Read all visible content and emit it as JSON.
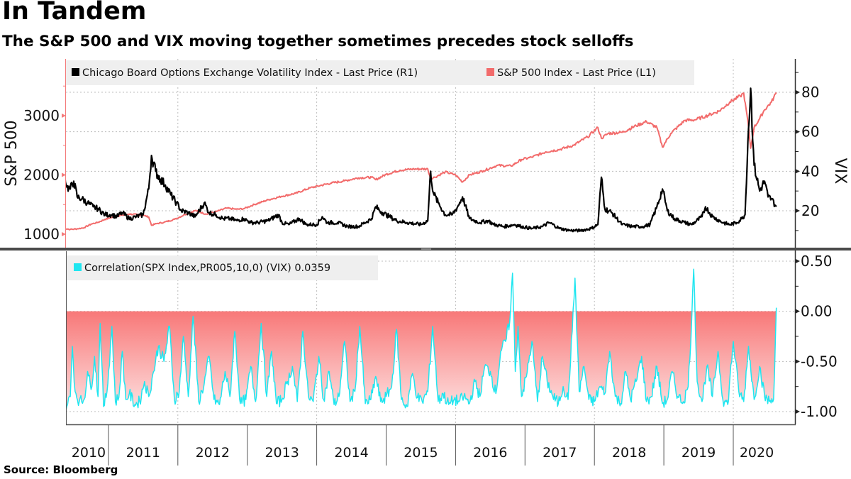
{
  "header": {
    "title": "In Tandem",
    "subtitle": "The S&P 500 and VIX moving together sometimes precedes stock selloffs"
  },
  "footer": {
    "source": "Source: Bloomberg"
  },
  "colors": {
    "vix": "#000000",
    "spx": "#f26b6b",
    "correlation": "#1fe6f0",
    "fill_top": "#f87878",
    "fill_bottom": "#fde0e0",
    "separator": "#4a4a4a",
    "legend_bg": "#efefef",
    "grid": "#bdbdbd"
  },
  "chart_data": [
    {
      "type": "line",
      "panel": "top",
      "title": "",
      "x_range": [
        2010.35,
        2020.62
      ],
      "x_tick_labels": [
        "2010",
        "2011",
        "2012",
        "2013",
        "2014",
        "2015",
        "2016",
        "2017",
        "2018",
        "2019",
        "2020"
      ],
      "left_axis": {
        "label": "S&P 500",
        "ylim": [
          900,
          3750
        ],
        "ticks": [
          1000,
          2000,
          3000
        ],
        "tick_labels": [
          "1000",
          "2000",
          "3000"
        ]
      },
      "right_axis": {
        "label": "VIX",
        "ylim": [
          0,
          95
        ],
        "ticks": [
          20,
          40,
          60,
          80
        ],
        "tick_labels": [
          "20",
          "40",
          "60",
          "80"
        ]
      },
      "legend": {
        "placement": "top-left"
      },
      "grid": true,
      "series": [
        {
          "name": "Chicago Board Options Exchange Volatility Index - Last Price (R1)",
          "legend_label": "Chicago Board Options Exchange Volatility Index - Last Price (R1)",
          "axis": "right",
          "x": [
            2010.35,
            2010.4,
            2010.45,
            2010.5,
            2010.55,
            2010.62,
            2010.7,
            2010.78,
            2010.85,
            2010.95,
            2011.05,
            2011.12,
            2011.2,
            2011.3,
            2011.4,
            2011.5,
            2011.58,
            2011.62,
            2011.68,
            2011.75,
            2011.82,
            2011.9,
            2011.98,
            2012.05,
            2012.15,
            2012.25,
            2012.38,
            2012.45,
            2012.55,
            2012.65,
            2012.75,
            2012.85,
            2012.95,
            2013.05,
            2013.15,
            2013.3,
            2013.45,
            2013.5,
            2013.6,
            2013.75,
            2013.85,
            2014.0,
            2014.08,
            2014.15,
            2014.3,
            2014.45,
            2014.6,
            2014.79,
            2014.85,
            2014.95,
            2015.05,
            2015.15,
            2015.3,
            2015.5,
            2015.6,
            2015.64,
            2015.68,
            2015.75,
            2015.85,
            2015.95,
            2016.03,
            2016.1,
            2016.2,
            2016.35,
            2016.47,
            2016.55,
            2016.7,
            2016.85,
            2016.95,
            2017.1,
            2017.25,
            2017.35,
            2017.5,
            2017.65,
            2017.8,
            2017.95,
            2018.05,
            2018.1,
            2018.15,
            2018.25,
            2018.4,
            2018.55,
            2018.7,
            2018.8,
            2018.9,
            2018.98,
            2019.05,
            2019.15,
            2019.3,
            2019.4,
            2019.55,
            2019.6,
            2019.7,
            2019.85,
            2019.95,
            2020.05,
            2020.12,
            2020.17,
            2020.21,
            2020.25,
            2020.3,
            2020.38,
            2020.45,
            2020.5,
            2020.55,
            2020.62
          ],
          "values": [
            43,
            32,
            31,
            35,
            27,
            26,
            24,
            22,
            21,
            18,
            18,
            17,
            19,
            16,
            17,
            18,
            31,
            48,
            40,
            36,
            33,
            28,
            24,
            20,
            19,
            17,
            24,
            19,
            18,
            16,
            16,
            15,
            16,
            14,
            14,
            15,
            18,
            14,
            13,
            16,
            13,
            13,
            17,
            14,
            14,
            12,
            12,
            16,
            22,
            19,
            17,
            15,
            14,
            13,
            15,
            40,
            29,
            24,
            18,
            18,
            22,
            27,
            16,
            14,
            15,
            13,
            12,
            13,
            12,
            11,
            12,
            14,
            11,
            10,
            10,
            11,
            13,
            37,
            21,
            19,
            13,
            12,
            12,
            13,
            22,
            31,
            20,
            16,
            14,
            13,
            17,
            22,
            17,
            14,
            13,
            14,
            16,
            18,
            55,
            82,
            43,
            30,
            35,
            27,
            26,
            22
          ]
        },
        {
          "name": "S&P 500 Index - Last Price (L1)",
          "legend_label": "S&P 500 Index - Last Price (L1)",
          "axis": "left",
          "x": [
            2010.35,
            2010.45,
            2010.55,
            2010.65,
            2010.75,
            2010.85,
            2010.95,
            2011.1,
            2011.3,
            2011.5,
            2011.58,
            2011.62,
            2011.7,
            2011.8,
            2011.95,
            2012.1,
            2012.25,
            2012.4,
            2012.55,
            2012.7,
            2012.85,
            2012.95,
            2013.1,
            2013.3,
            2013.5,
            2013.7,
            2013.9,
            2014.05,
            2014.2,
            2014.4,
            2014.6,
            2014.79,
            2014.85,
            2015.0,
            2015.2,
            2015.4,
            2015.6,
            2015.64,
            2015.7,
            2015.85,
            2016.0,
            2016.1,
            2016.2,
            2016.4,
            2016.6,
            2016.8,
            2016.95,
            2017.1,
            2017.3,
            2017.5,
            2017.7,
            2017.9,
            2018.05,
            2018.1,
            2018.2,
            2018.4,
            2018.6,
            2018.75,
            2018.9,
            2018.98,
            2019.1,
            2019.3,
            2019.45,
            2019.6,
            2019.8,
            2019.95,
            2020.1,
            2020.15,
            2020.21,
            2020.25,
            2020.3,
            2020.38,
            2020.45,
            2020.55,
            2020.62
          ],
          "values": [
            1100,
            1080,
            1090,
            1110,
            1170,
            1200,
            1250,
            1300,
            1340,
            1320,
            1290,
            1150,
            1180,
            1200,
            1250,
            1330,
            1400,
            1340,
            1380,
            1440,
            1420,
            1430,
            1500,
            1580,
            1640,
            1690,
            1780,
            1820,
            1860,
            1900,
            1950,
            1960,
            1920,
            2010,
            2080,
            2100,
            2100,
            1940,
            1960,
            2050,
            2000,
            1880,
            2000,
            2070,
            2160,
            2150,
            2260,
            2300,
            2390,
            2430,
            2500,
            2640,
            2800,
            2620,
            2700,
            2720,
            2830,
            2900,
            2800,
            2470,
            2700,
            2920,
            2930,
            2990,
            3080,
            3230,
            3330,
            3380,
            2900,
            2450,
            2800,
            2950,
            3100,
            3230,
            3390
          ]
        }
      ]
    },
    {
      "type": "area",
      "panel": "bottom",
      "title": "",
      "x_range": [
        2010.35,
        2020.62
      ],
      "right_axis": {
        "label": "",
        "ylim": [
          -1.12,
          0.57
        ],
        "ticks": [
          0.5,
          0,
          -0.5,
          -1.0
        ],
        "tick_labels": [
          "0.50",
          "0.00",
          "-0.50",
          "-1.00"
        ]
      },
      "legend": {
        "placement": "top-left"
      },
      "grid": true,
      "series": [
        {
          "name": "Correlation(SPX Index,PR005,10,0) (VIX)",
          "legend_label": "Correlation(SPX Index,PR005,10,0) (VIX) 0.0359",
          "last_value": 0.0359,
          "x": [
            2010.35,
            2010.4,
            2010.45,
            2010.48,
            2010.52,
            2010.58,
            2010.65,
            2010.7,
            2010.75,
            2010.8,
            2010.85,
            2010.88,
            2010.93,
            2010.98,
            2011.05,
            2011.1,
            2011.15,
            2011.2,
            2011.25,
            2011.3,
            2011.38,
            2011.45,
            2011.52,
            2011.58,
            2011.65,
            2011.72,
            2011.8,
            2011.88,
            2011.95,
            2012.02,
            2012.08,
            2012.15,
            2012.22,
            2012.3,
            2012.38,
            2012.45,
            2012.52,
            2012.6,
            2012.68,
            2012.75,
            2012.82,
            2012.9,
            2012.98,
            2013.05,
            2013.12,
            2013.2,
            2013.28,
            2013.35,
            2013.42,
            2013.5,
            2013.58,
            2013.65,
            2013.72,
            2013.8,
            2013.88,
            2013.95,
            2014.03,
            2014.1,
            2014.18,
            2014.25,
            2014.32,
            2014.4,
            2014.48,
            2014.55,
            2014.62,
            2014.7,
            2014.78,
            2014.85,
            2014.92,
            2015.0,
            2015.08,
            2015.15,
            2015.22,
            2015.3,
            2015.38,
            2015.45,
            2015.52,
            2015.6,
            2015.67,
            2015.75,
            2015.82,
            2015.9,
            2015.98,
            2016.05,
            2016.12,
            2016.2,
            2016.28,
            2016.35,
            2016.42,
            2016.5,
            2016.58,
            2016.65,
            2016.72,
            2016.78,
            2016.82,
            2016.86,
            2016.9,
            2016.95,
            2017.02,
            2017.1,
            2017.18,
            2017.25,
            2017.32,
            2017.4,
            2017.48,
            2017.55,
            2017.62,
            2017.68,
            2017.72,
            2017.78,
            2017.85,
            2017.92,
            2018.0,
            2018.08,
            2018.15,
            2018.22,
            2018.3,
            2018.38,
            2018.45,
            2018.52,
            2018.6,
            2018.68,
            2018.75,
            2018.82,
            2018.9,
            2018.98,
            2019.05,
            2019.12,
            2019.2,
            2019.28,
            2019.35,
            2019.4,
            2019.43,
            2019.48,
            2019.55,
            2019.62,
            2019.7,
            2019.78,
            2019.85,
            2019.92,
            2020.0,
            2020.08,
            2020.15,
            2020.22,
            2020.3,
            2020.38,
            2020.45,
            2020.52,
            2020.58,
            2020.62
          ],
          "values": [
            -0.92,
            -0.95,
            -0.85,
            -0.35,
            -0.8,
            -0.9,
            -0.88,
            -0.6,
            -0.78,
            -0.45,
            -0.85,
            -0.12,
            -0.95,
            -0.8,
            -0.15,
            -0.9,
            -0.86,
            -0.4,
            -0.88,
            -0.82,
            -0.93,
            -0.9,
            -0.7,
            -0.85,
            -0.6,
            -0.35,
            -0.5,
            -0.15,
            -0.88,
            -0.8,
            -0.25,
            -0.85,
            -0.05,
            -0.9,
            -0.72,
            -0.45,
            -0.88,
            -0.93,
            -0.6,
            -0.85,
            -0.2,
            -0.92,
            -0.88,
            -0.55,
            -0.9,
            -0.12,
            -0.85,
            -0.4,
            -0.92,
            -0.88,
            -0.7,
            -0.55,
            -0.9,
            -0.2,
            -0.85,
            -0.9,
            -0.45,
            -0.88,
            -0.6,
            -0.93,
            -0.85,
            -0.3,
            -0.9,
            -0.8,
            -0.15,
            -0.92,
            -0.88,
            -0.65,
            -0.9,
            -0.85,
            -0.75,
            -0.18,
            -0.88,
            -0.95,
            -0.62,
            -0.86,
            -0.9,
            -0.8,
            -0.15,
            -0.9,
            -0.82,
            -0.93,
            -0.88,
            -0.9,
            -0.85,
            -0.92,
            -0.7,
            -0.85,
            -0.55,
            -0.6,
            -0.82,
            -0.4,
            -0.3,
            -0.1,
            0.38,
            -0.6,
            -0.15,
            -0.85,
            -0.65,
            -0.3,
            -0.9,
            -0.45,
            -0.7,
            -0.85,
            -0.92,
            -0.75,
            -0.88,
            -0.2,
            0.33,
            -0.8,
            -0.55,
            -0.88,
            -0.9,
            -0.75,
            -0.82,
            -0.4,
            -0.85,
            -0.92,
            -0.6,
            -0.88,
            -0.7,
            -0.45,
            -0.9,
            -0.85,
            -0.55,
            -0.92,
            -0.88,
            -0.6,
            -0.85,
            -0.9,
            -0.75,
            -0.1,
            0.42,
            -0.7,
            -0.9,
            -0.55,
            -0.85,
            -0.4,
            -0.88,
            -0.93,
            -0.3,
            -0.8,
            -0.9,
            -0.35,
            -0.88,
            -0.55,
            -0.85,
            -0.9,
            -0.88,
            0.0359
          ]
        }
      ]
    }
  ]
}
